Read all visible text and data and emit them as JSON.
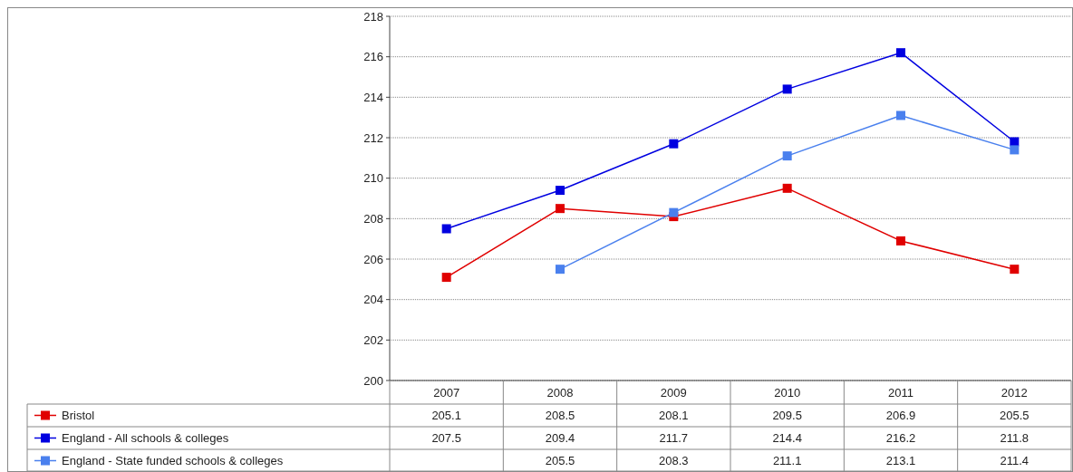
{
  "chart_data": {
    "type": "line",
    "categories": [
      "2007",
      "2008",
      "2009",
      "2010",
      "2011",
      "2012"
    ],
    "series": [
      {
        "name": "Bristol",
        "color": "#e00000",
        "values": [
          205.1,
          208.5,
          208.1,
          209.5,
          206.9,
          205.5
        ]
      },
      {
        "name": "England - All schools & colleges",
        "color": "#0000e0",
        "values": [
          207.5,
          209.4,
          211.7,
          214.4,
          216.2,
          211.8
        ]
      },
      {
        "name": "England - State funded schools & colleges",
        "color": "#4a80ee",
        "values": [
          null,
          205.5,
          208.3,
          211.1,
          213.1,
          211.4
        ]
      }
    ],
    "ylim": [
      200,
      218
    ],
    "yticks": [
      200,
      202,
      204,
      206,
      208,
      210,
      212,
      214,
      216,
      218
    ],
    "grid": "y",
    "legend": "bottom",
    "marker": "square",
    "line_style": "solid",
    "data_labels": true
  }
}
